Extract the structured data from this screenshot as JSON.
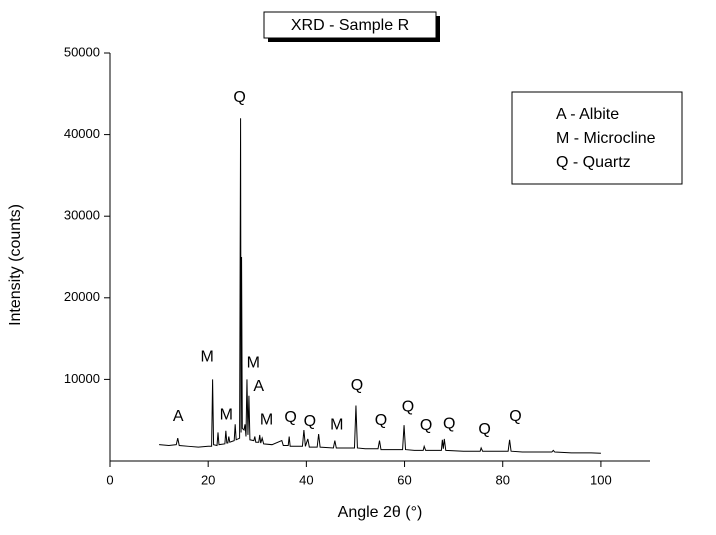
{
  "chart_data": {
    "type": "line",
    "title": "XRD - Sample R",
    "xlabel": "Angle 2θ (°)",
    "ylabel": "Intensity (counts)",
    "xlim": [
      0,
      110
    ],
    "xticks": [
      0,
      20,
      40,
      60,
      80,
      100
    ],
    "ylim": [
      0,
      50000
    ],
    "yticks": [
      10000,
      20000,
      30000,
      40000,
      50000
    ],
    "color": "#000000",
    "legend_position": "upper right",
    "legend": [
      "A - Albite",
      "M - Microcline",
      "Q - Quartz"
    ],
    "x": [
      10,
      12,
      13.5,
      13.8,
      14.1,
      16,
      18,
      20,
      20.7,
      20.9,
      21.1,
      21.8,
      22.0,
      22.2,
      23.4,
      23.6,
      23.8,
      24.0,
      24.2,
      24.4,
      25.3,
      25.5,
      25.7,
      26.4,
      26.6,
      26.7,
      26.8,
      26.95,
      27.3,
      27.5,
      27.7,
      27.9,
      28.1,
      28.3,
      28.5,
      29.3,
      29.5,
      29.7,
      30.3,
      30.5,
      30.7,
      31,
      31.3,
      33,
      35,
      35.3,
      36.3,
      36.5,
      36.7,
      39.2,
      39.5,
      39.8,
      40.3,
      40.6,
      42.2,
      42.5,
      42.8,
      45.5,
      45.8,
      46.1,
      49.8,
      50.1,
      50.4,
      52,
      54.6,
      54.9,
      55.2,
      57,
      59.6,
      59.9,
      60.2,
      62,
      63.8,
      64,
      64.3,
      67.5,
      67.7,
      67.9,
      68.1,
      68.4,
      72,
      75.4,
      75.6,
      75.9,
      79,
      81.1,
      81.4,
      81.7,
      84,
      88,
      90,
      90.3,
      90.6,
      94,
      96,
      98,
      100
    ],
    "values": [
      2000,
      1900,
      2000,
      2800,
      1900,
      1800,
      1700,
      1800,
      1800,
      10000,
      2000,
      1900,
      3500,
      2000,
      2100,
      3700,
      2200,
      2200,
      3000,
      2300,
      2500,
      4500,
      2600,
      2800,
      42000,
      3500,
      25000,
      4000,
      3800,
      4500,
      3000,
      10000,
      3200,
      8000,
      2600,
      2500,
      3000,
      2300,
      2300,
      3200,
      2200,
      2800,
      2100,
      2000,
      2500,
      1900,
      1900,
      3000,
      1800,
      1800,
      3800,
      1800,
      2700,
      1700,
      1700,
      3300,
      1700,
      1600,
      2500,
      1600,
      1600,
      6800,
      1600,
      1500,
      1500,
      2500,
      1400,
      1400,
      1400,
      4400,
      1400,
      1300,
      1300,
      1800,
      1300,
      1300,
      2600,
      1500,
      2700,
      1300,
      1200,
      1200,
      1600,
      1200,
      1200,
      1200,
      2600,
      1200,
      1100,
      1100,
      1100,
      1300,
      1100,
      1000,
      1000,
      1000,
      950
    ],
    "annotations": [
      {
        "text": "A",
        "x": 13.9,
        "y": 5400
      },
      {
        "text": "M",
        "x": 19.8,
        "y": 12700
      },
      {
        "text": "Q",
        "x": 26.4,
        "y": 44500
      },
      {
        "text": "M",
        "x": 29.2,
        "y": 12000
      },
      {
        "text": "A",
        "x": 30.3,
        "y": 9100
      },
      {
        "text": "M",
        "x": 23.7,
        "y": 5600
      },
      {
        "text": "M",
        "x": 31.9,
        "y": 5000
      },
      {
        "text": "Q",
        "x": 36.8,
        "y": 5300
      },
      {
        "text": "Q",
        "x": 40.7,
        "y": 4800
      },
      {
        "text": "M",
        "x": 46.2,
        "y": 4400
      },
      {
        "text": "Q",
        "x": 50.3,
        "y": 9200
      },
      {
        "text": "Q",
        "x": 55.2,
        "y": 4900
      },
      {
        "text": "Q",
        "x": 60.7,
        "y": 6600
      },
      {
        "text": "Q",
        "x": 64.4,
        "y": 4300
      },
      {
        "text": "Q",
        "x": 69.1,
        "y": 4500
      },
      {
        "text": "Q",
        "x": 76.3,
        "y": 3800
      },
      {
        "text": "Q",
        "x": 82.6,
        "y": 5400
      }
    ]
  }
}
